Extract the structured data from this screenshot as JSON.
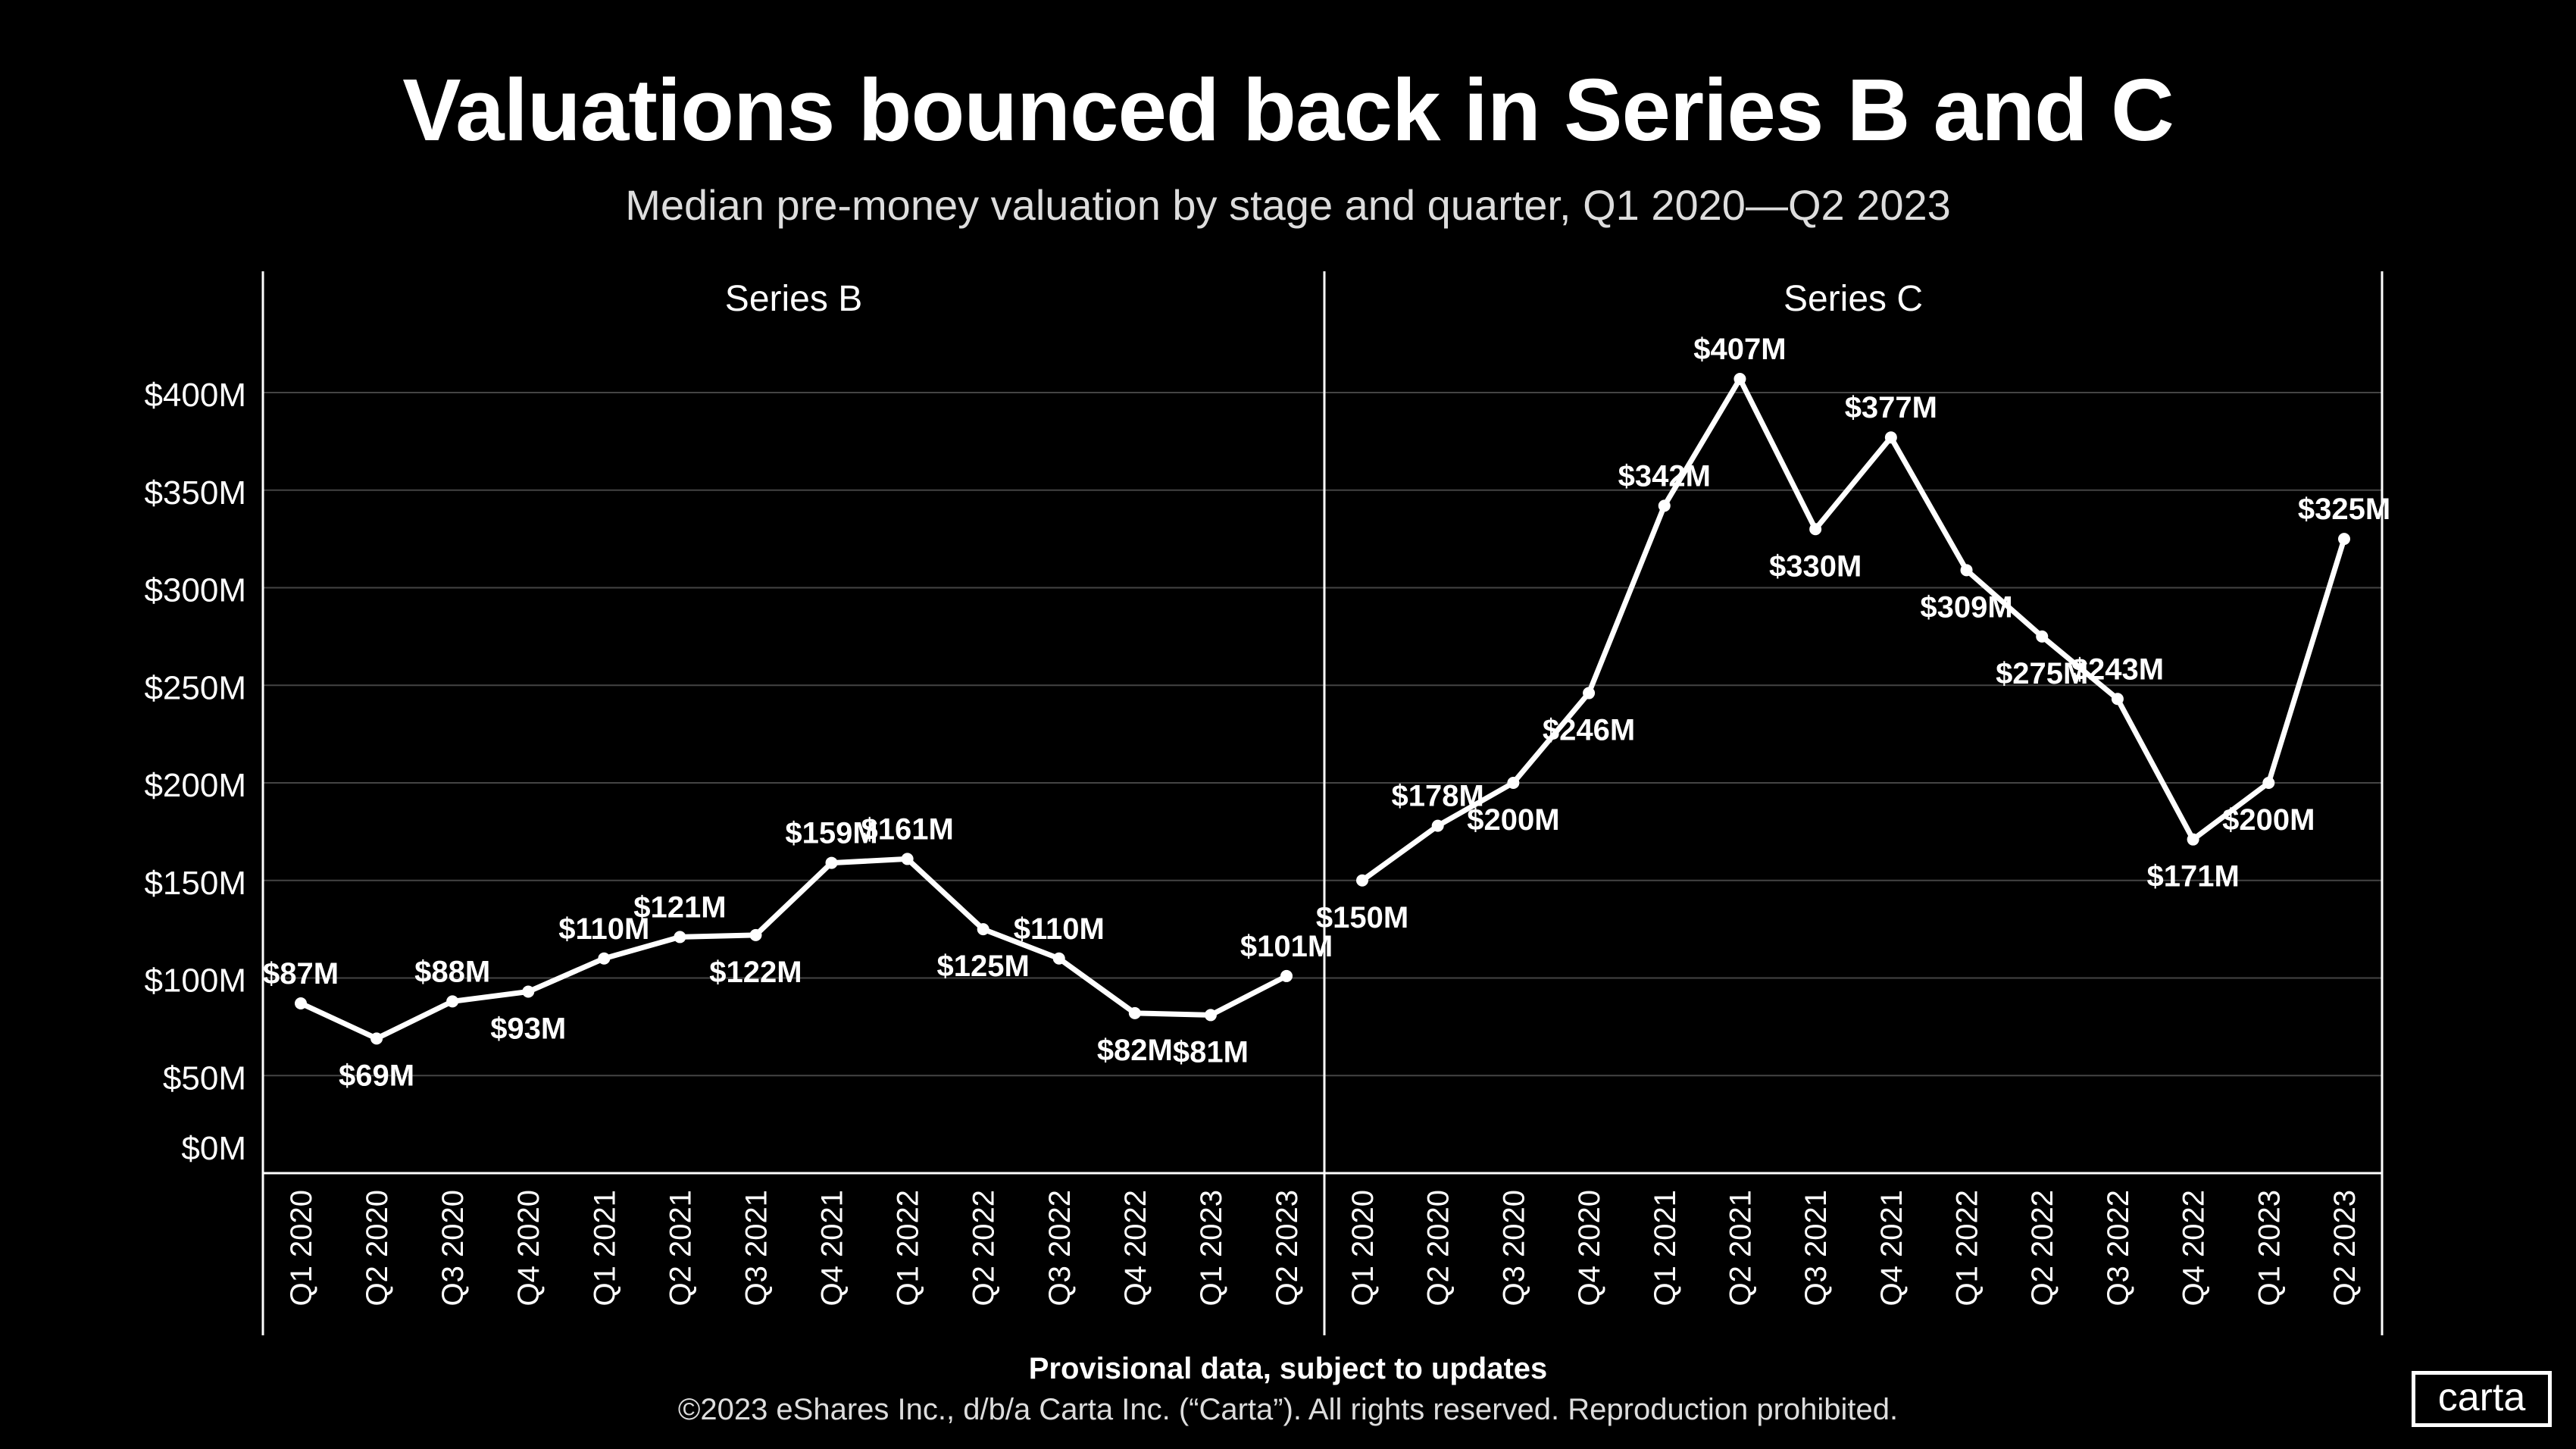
{
  "title": "Valuations bounced back in Series B and C",
  "subtitle": "Median pre-money valuation by stage and quarter, Q1 2020—Q2 2023",
  "footer": {
    "note": "Provisional data, subject to updates",
    "copyright": "©2023 eShares Inc., d/b/a Carta Inc. (“Carta”). All rights reserved. Reproduction prohibited."
  },
  "logo": "carta",
  "colors": {
    "background": "#000000",
    "line": "#ffffff",
    "grid": "#444444"
  },
  "chart_data": [
    {
      "type": "line",
      "title": "Series B",
      "categories": [
        "Q1 2020",
        "Q2 2020",
        "Q3 2020",
        "Q4 2020",
        "Q1 2021",
        "Q2 2021",
        "Q3 2021",
        "Q4 2021",
        "Q1 2022",
        "Q2 2022",
        "Q3 2022",
        "Q4 2022",
        "Q1 2023",
        "Q2 2023"
      ],
      "values": [
        87,
        69,
        88,
        93,
        110,
        121,
        122,
        159,
        161,
        125,
        110,
        82,
        81,
        101
      ],
      "labels": [
        "$87M",
        "$69M",
        "$88M",
        "$93M",
        "$110M",
        "$121M",
        "$122M",
        "$159M",
        "$161M",
        "$125M",
        "$110M",
        "$82M",
        "$81M",
        "$101M"
      ],
      "yticks": [
        "$0M",
        "$50M",
        "$100M",
        "$150M",
        "$200M",
        "$250M",
        "$300M",
        "$350M",
        "$400M"
      ],
      "ylim": [
        0,
        420
      ],
      "grid": true
    },
    {
      "type": "line",
      "title": "Series C",
      "categories": [
        "Q1 2020",
        "Q2 2020",
        "Q3 2020",
        "Q4 2020",
        "Q1 2021",
        "Q2 2021",
        "Q3 2021",
        "Q4 2021",
        "Q1 2022",
        "Q2 2022",
        "Q3 2022",
        "Q4 2022",
        "Q1 2023",
        "Q2 2023"
      ],
      "values": [
        150,
        178,
        200,
        246,
        342,
        407,
        330,
        377,
        309,
        275,
        243,
        171,
        200,
        325
      ],
      "labels": [
        "$150M",
        "$178M",
        "$200M",
        "$246M",
        "$342M",
        "$407M",
        "$330M",
        "$377M",
        "$309M",
        "$275M",
        "$243M",
        "$171M",
        "$200M",
        "$325M"
      ],
      "ylim": [
        0,
        420
      ],
      "grid": true
    }
  ]
}
